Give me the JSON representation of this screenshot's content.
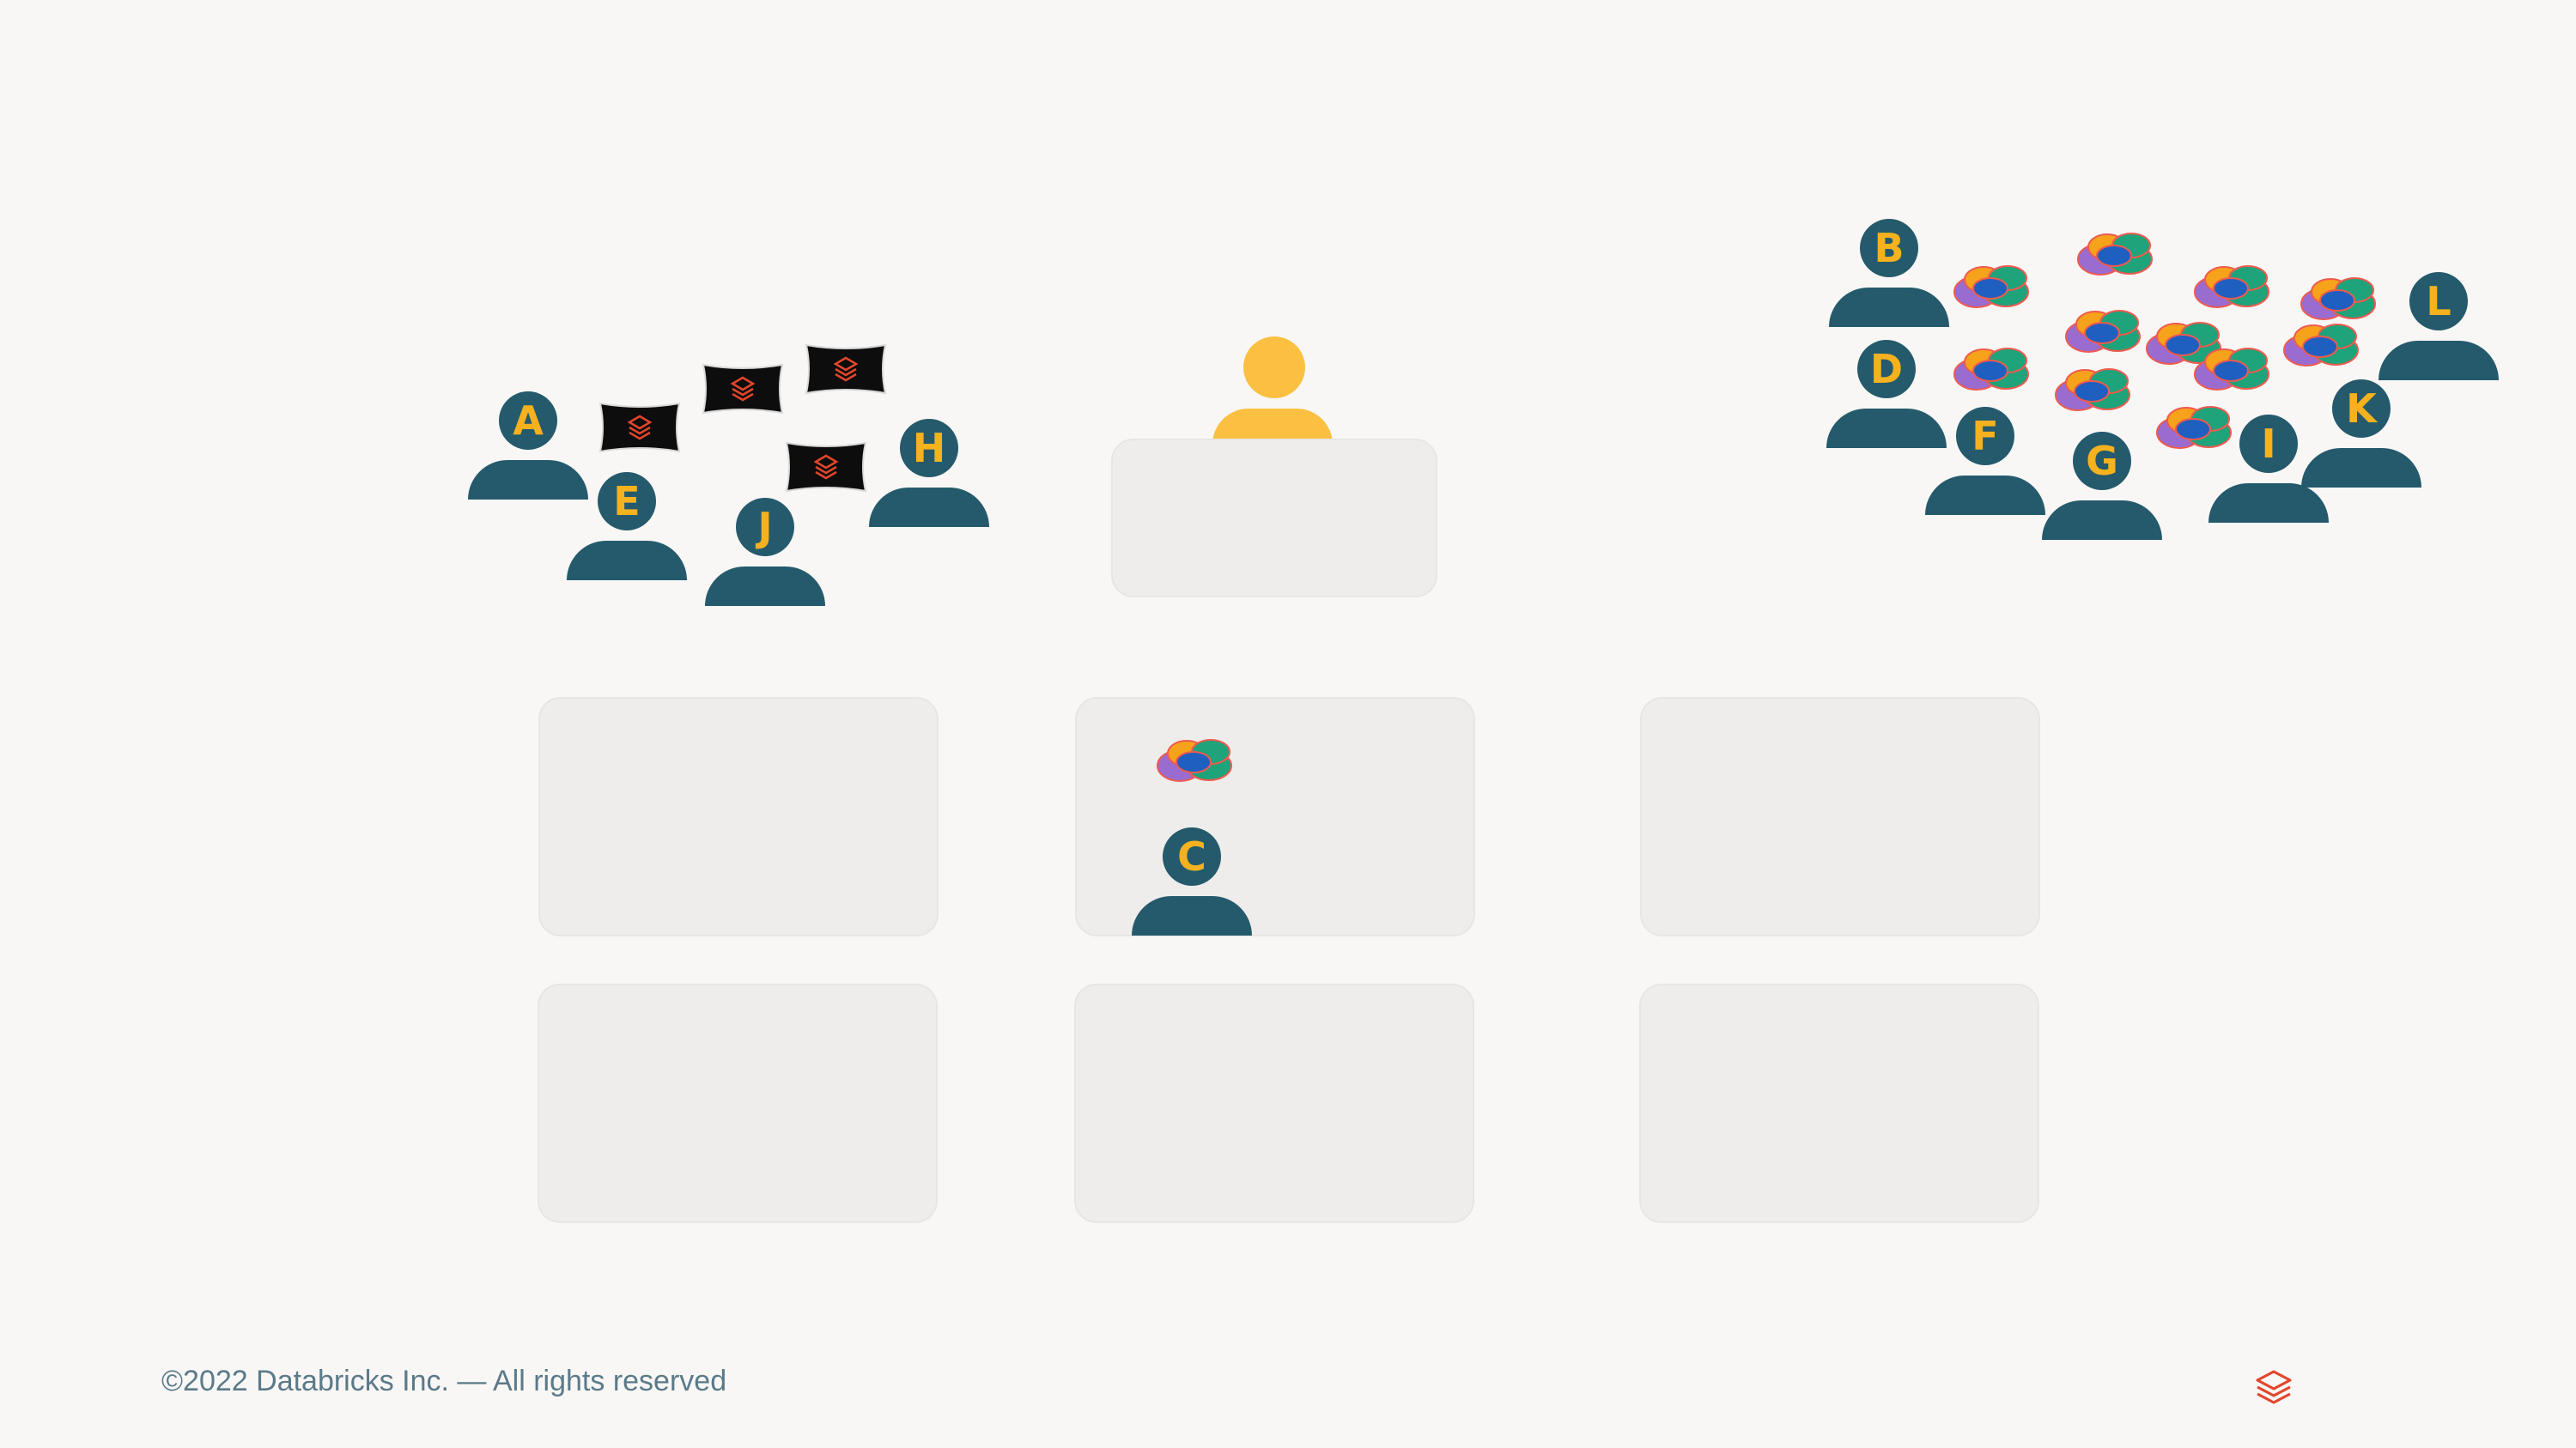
{
  "footer": {
    "copyright": "©2022 Databricks Inc. — All rights reserved"
  },
  "colors": {
    "background": "#f8f7f5",
    "table": "#eeedeb",
    "person": "#255a6c",
    "letter": "#f5b21e",
    "instructor": "#fbc041",
    "brand": "#e2462b"
  },
  "icons": {
    "pillow": "databricks-pillow-icon",
    "badge": "community-badge-icon",
    "logo": "databricks-logo-icon"
  },
  "people": {
    "A": "A",
    "B": "B",
    "C": "C",
    "D": "D",
    "E": "E",
    "F": "F",
    "G": "G",
    "H": "H",
    "I": "I",
    "J": "J",
    "K": "K",
    "L": "L"
  }
}
